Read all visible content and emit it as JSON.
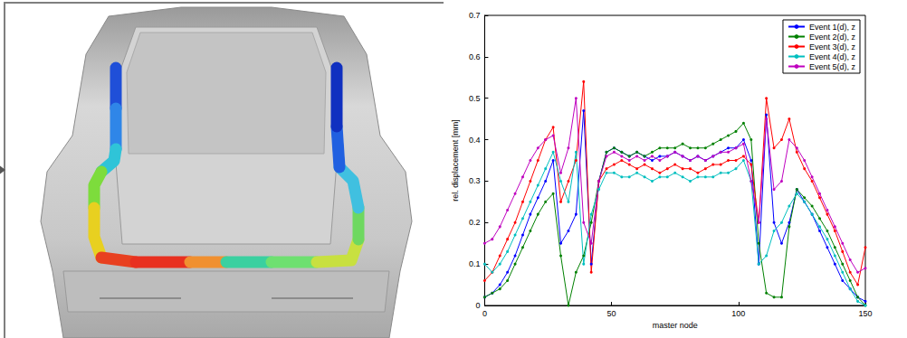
{
  "chart_data": {
    "type": "line",
    "x_label": "master node",
    "y_label": "rel. displacement [mm]",
    "x": [
      0,
      3,
      6,
      9,
      12,
      15,
      18,
      21,
      24,
      27,
      30,
      33,
      36,
      39,
      42,
      45,
      48,
      51,
      54,
      57,
      60,
      63,
      66,
      69,
      72,
      75,
      78,
      81,
      84,
      87,
      90,
      93,
      96,
      99,
      102,
      105,
      108,
      111,
      114,
      117,
      120,
      123,
      126,
      129,
      132,
      135,
      138,
      141,
      144,
      147,
      150
    ],
    "series": [
      {
        "name": "Event 1(d), z",
        "color": "#0000ff",
        "values": [
          0.02,
          0.03,
          0.05,
          0.08,
          0.12,
          0.17,
          0.22,
          0.26,
          0.3,
          0.35,
          0.15,
          0.18,
          0.22,
          0.47,
          0.1,
          0.3,
          0.37,
          0.38,
          0.37,
          0.36,
          0.37,
          0.36,
          0.35,
          0.36,
          0.36,
          0.37,
          0.36,
          0.35,
          0.36,
          0.35,
          0.36,
          0.37,
          0.38,
          0.38,
          0.4,
          0.35,
          0.1,
          0.46,
          0.2,
          0.15,
          0.2,
          0.28,
          0.25,
          0.22,
          0.18,
          0.14,
          0.1,
          0.06,
          0.04,
          0.02,
          0.01
        ]
      },
      {
        "name": "Event 2(d), z",
        "color": "#008000",
        "values": [
          0.02,
          0.03,
          0.04,
          0.06,
          0.1,
          0.14,
          0.18,
          0.22,
          0.25,
          0.27,
          0.12,
          0,
          0.08,
          0.12,
          0.2,
          0.3,
          0.37,
          0.38,
          0.37,
          0.36,
          0.37,
          0.36,
          0.37,
          0.38,
          0.38,
          0.38,
          0.39,
          0.38,
          0.38,
          0.38,
          0.39,
          0.4,
          0.41,
          0.42,
          0.44,
          0.4,
          0.15,
          0.03,
          0.02,
          0.02,
          0.19,
          0.28,
          0.26,
          0.24,
          0.21,
          0.18,
          0.14,
          0.1,
          0.06,
          0.02,
          0
        ]
      },
      {
        "name": "Event 3(d), z",
        "color": "#ff0000",
        "values": [
          0.06,
          0.08,
          0.12,
          0.16,
          0.2,
          0.25,
          0.3,
          0.35,
          0.4,
          0.43,
          0.25,
          0.3,
          0.35,
          0.54,
          0.08,
          0.3,
          0.33,
          0.34,
          0.35,
          0.34,
          0.33,
          0.34,
          0.33,
          0.32,
          0.33,
          0.34,
          0.33,
          0.33,
          0.32,
          0.33,
          0.34,
          0.34,
          0.35,
          0.35,
          0.36,
          0.34,
          0.2,
          0.5,
          0.38,
          0.4,
          0.45,
          0.37,
          0.33,
          0.3,
          0.26,
          0.22,
          0.18,
          0.13,
          0.08,
          0.05,
          0.14
        ]
      },
      {
        "name": "Event 4(d), z",
        "color": "#00bfbf",
        "values": [
          0.1,
          0.08,
          0.1,
          0.13,
          0.17,
          0.21,
          0.25,
          0.29,
          0.33,
          0.37,
          0.3,
          0.25,
          0.37,
          0.1,
          0.22,
          0.28,
          0.32,
          0.32,
          0.31,
          0.31,
          0.32,
          0.31,
          0.3,
          0.31,
          0.31,
          0.32,
          0.31,
          0.3,
          0.31,
          0.31,
          0.31,
          0.32,
          0.32,
          0.33,
          0.35,
          0.3,
          0.1,
          0.12,
          0.18,
          0.2,
          0.24,
          0.27,
          0.25,
          0.22,
          0.19,
          0.16,
          0.12,
          0.08,
          0.04,
          0.01,
          0
        ]
      },
      {
        "name": "Event 5(d), z",
        "color": "#bf00bf",
        "values": [
          0.15,
          0.16,
          0.19,
          0.23,
          0.27,
          0.31,
          0.35,
          0.38,
          0.4,
          0.41,
          0.32,
          0.38,
          0.5,
          0.2,
          0.15,
          0.3,
          0.36,
          0.37,
          0.36,
          0.35,
          0.36,
          0.35,
          0.36,
          0.35,
          0.36,
          0.37,
          0.36,
          0.35,
          0.36,
          0.35,
          0.36,
          0.37,
          0.37,
          0.38,
          0.39,
          0.3,
          0.2,
          0.45,
          0.28,
          0.3,
          0.4,
          0.38,
          0.35,
          0.31,
          0.27,
          0.23,
          0.19,
          0.15,
          0.11,
          0.08,
          0.09
        ]
      }
    ],
    "xlim": [
      0,
      150
    ],
    "xticks": [
      0,
      50,
      100,
      150
    ],
    "ylim": [
      0,
      0.7
    ],
    "yticks": [
      0,
      0.1,
      0.2,
      0.3,
      0.4,
      0.5,
      0.6,
      0.7
    ],
    "marker": "circle",
    "line_style": "solid",
    "grid": false,
    "legend": "upper right"
  }
}
